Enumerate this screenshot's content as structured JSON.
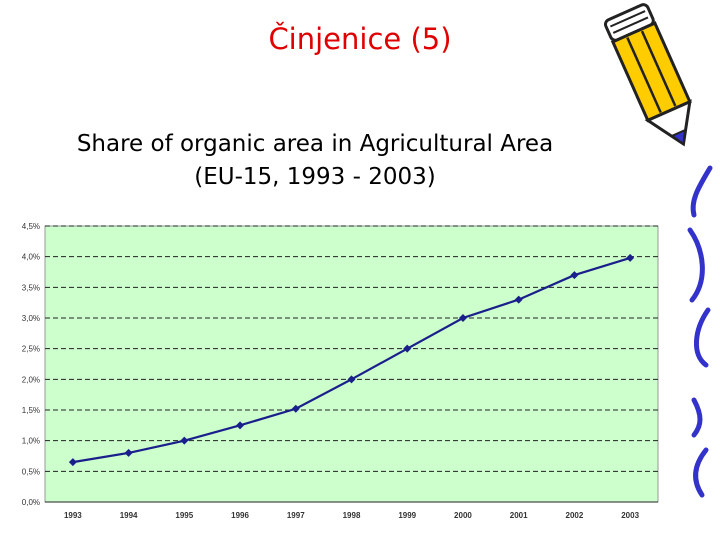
{
  "slide": {
    "title": "Činjenice (5)",
    "subtitle_line1": "Share of organic area in Agricultural Area",
    "subtitle_line2": "(EU-15, 1993 - 2003)"
  },
  "colors": {
    "title": "#e00000",
    "plot_background": "#ccffcc",
    "line": "#1a1f8c",
    "squiggle": "#3333cc",
    "pencil_body": "#ffcc00"
  },
  "icons": [
    "pencil-icon",
    "squiggle-decoration"
  ],
  "chart_data": {
    "type": "line",
    "title": "",
    "xlabel": "",
    "ylabel": "",
    "categories": [
      "1993",
      "1994",
      "1995",
      "1996",
      "1997",
      "1998",
      "1999",
      "2000",
      "2001",
      "2002",
      "2003"
    ],
    "values": [
      0.65,
      0.8,
      1.0,
      1.25,
      1.52,
      2.0,
      2.5,
      3.0,
      3.3,
      3.7,
      3.98
    ],
    "ylim": [
      0,
      4.5
    ],
    "yticks": [
      "0,0%",
      "0,5%",
      "1,0%",
      "1,5%",
      "2,0%",
      "2,5%",
      "3,0%",
      "3,5%",
      "4,0%",
      "4,5%"
    ],
    "grid": "horizontal dashed",
    "legend": "none",
    "marker": "diamond"
  }
}
